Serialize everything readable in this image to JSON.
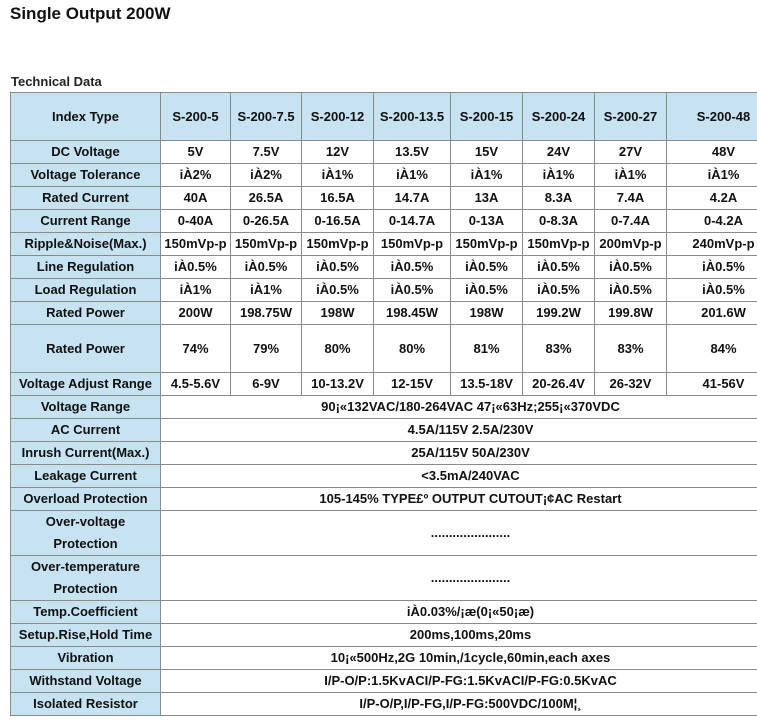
{
  "title": "Single Output 200W",
  "subtitle": "Technical Data",
  "table": {
    "header": [
      "Index Type",
      "S-200-5",
      "S-200-7.5",
      "S-200-12",
      "S-200-13.5",
      "S-200-15",
      "S-200-24",
      "S-200-27",
      "S-200-48"
    ],
    "rows": [
      [
        "DC Voltage",
        "5V",
        "7.5V",
        "12V",
        "13.5V",
        "15V",
        "24V",
        "27V",
        "48V"
      ],
      [
        "Voltage Tolerance",
        "iÀ2%",
        "iÀ2%",
        "iÀ1%",
        "iÀ1%",
        "iÀ1%",
        "iÀ1%",
        "iÀ1%",
        "iÀ1%"
      ],
      [
        "Rated Current",
        "40A",
        "26.5A",
        "16.5A",
        "14.7A",
        "13A",
        "8.3A",
        "7.4A",
        "4.2A"
      ],
      [
        "Current Range",
        "0-40A",
        "0-26.5A",
        "0-16.5A",
        "0-14.7A",
        "0-13A",
        "0-8.3A",
        "0-7.4A",
        "0-4.2A"
      ],
      [
        "Ripple&Noise(Max.)",
        "150mVp-p",
        "150mVp-p",
        "150mVp-p",
        "150mVp-p",
        "150mVp-p",
        "150mVp-p",
        "200mVp-p",
        "240mVp-p"
      ],
      [
        "Line Regulation",
        "iÀ0.5%",
        "iÀ0.5%",
        "iÀ0.5%",
        "iÀ0.5%",
        "iÀ0.5%",
        "iÀ0.5%",
        "iÀ0.5%",
        "iÀ0.5%"
      ],
      [
        "Load Regulation",
        "iÀ1%",
        "iÀ1%",
        "iÀ0.5%",
        "iÀ0.5%",
        "iÀ0.5%",
        "iÀ0.5%",
        "iÀ0.5%",
        "iÀ0.5%"
      ],
      [
        "Rated Power",
        "200W",
        "198.75W",
        "198W",
        "198.45W",
        "198W",
        "199.2W",
        "199.8W",
        "201.6W"
      ],
      [
        "Rated Power",
        "74%",
        "79%",
        "80%",
        "80%",
        "81%",
        "83%",
        "83%",
        "84%"
      ],
      [
        "Voltage Adjust Range",
        "4.5-5.6V",
        "6-9V",
        "10-13.2V",
        "12-15V",
        "13.5-18V",
        "20-26.4V",
        "26-32V",
        "41-56V"
      ],
      [
        "Voltage Range",
        "90¡«132VAC/180-264VAC 47¡«63Hz;255¡«370VDC"
      ],
      [
        "AC Current",
        "4.5A/115V 2.5A/230V"
      ],
      [
        "Inrush Current(Max.)",
        "25A/115V 50A/230V"
      ],
      [
        "Leakage Current",
        "<3.5mA/240VAC"
      ],
      [
        "Overload Protection",
        "105-145% TYPE£º OUTPUT CUTOUT¡¢AC Restart"
      ],
      [
        "Over-voltage Protection",
        "......................"
      ],
      [
        "Over-temperature Protection",
        "......................"
      ],
      [
        "Temp.Coefficient",
        "iÀ0.03%/¡æ(0¡«50¡æ)"
      ],
      [
        "Setup.Rise,Hold Time",
        "200ms,100ms,20ms"
      ],
      [
        "Vibration",
        "10¡«500Hz,2G 10min,/1cycle,60min,each axes"
      ],
      [
        "Withstand Voltage",
        "I/P-O/P:1.5KvACI/P-FG:1.5KvACI/P-FG:0.5KvAC"
      ],
      [
        "Isolated Resistor",
        "I/P-O/P,I/P-FG,I/P-FG:500VDC/100M¦¸"
      ]
    ]
  }
}
